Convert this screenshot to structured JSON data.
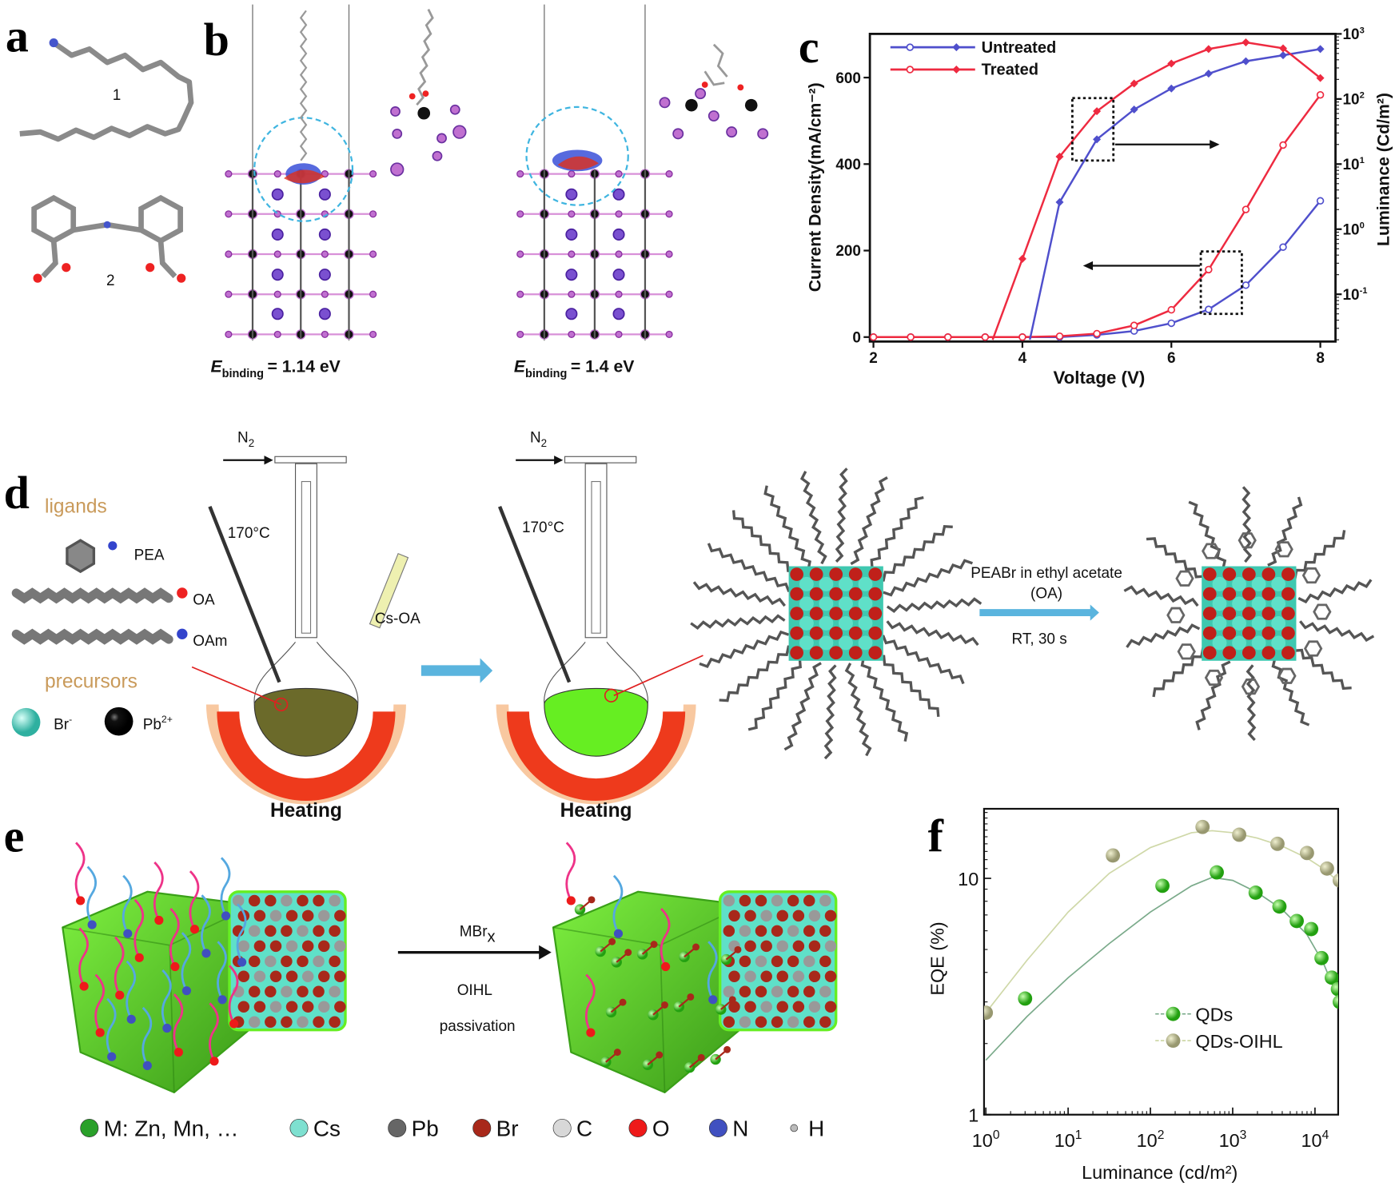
{
  "panel_labels": {
    "a": "a",
    "b": "b",
    "c": "c",
    "d": "d",
    "e": "e",
    "f": "f"
  },
  "panel_a": {
    "molecule_1_label": "1",
    "molecule_2_label": "2"
  },
  "panel_b": {
    "binding": [
      {
        "symbol": "E",
        "subscript": "binding",
        "value": "= 1.14 eV"
      },
      {
        "symbol": "E",
        "subscript": "binding",
        "value": "= 1.4 eV"
      }
    ]
  },
  "panel_d": {
    "ligands_heading": "ligands",
    "ligands": [
      "PEA",
      "OA",
      "OAm"
    ],
    "precursors_heading": "precursors",
    "precursors": [
      {
        "name": "Br",
        "sup": "-"
      },
      {
        "name": "Pb",
        "sup": "2+"
      }
    ],
    "gas": {
      "main": "N",
      "sub": "2"
    },
    "temperature": "170°C",
    "syringe_label": "Cs-OA",
    "heating_label": "Heating",
    "exchange_line1": "PEABr in ethyl acetate",
    "exchange_line2": "(OA)",
    "exchange_conditions": "RT, 30 s",
    "colors": {
      "flask1": "#6b6a2a",
      "flask2": "#66ee22",
      "mantle": "#ee3a1c",
      "mantle_halo": "#f8c8a0",
      "arrow": "#5ab4de"
    }
  },
  "panel_e": {
    "reagent_main": "MBr",
    "reagent_sub": "x",
    "process_line1": "OIHL",
    "process_line2": "passivation",
    "legend": [
      {
        "label": "M: Zn, Mn, …",
        "color": "#2aa02a"
      },
      {
        "label": "Cs",
        "color": "#7ee0d0"
      },
      {
        "label": "Pb",
        "color": "#666666"
      },
      {
        "label": "Br",
        "color": "#a8281a"
      },
      {
        "label": "C",
        "color": "#d8d8d8"
      },
      {
        "label": "O",
        "color": "#ee1a1a"
      },
      {
        "label": "N",
        "color": "#4050c0"
      },
      {
        "label": "H",
        "color": "#bbbbbb"
      }
    ]
  },
  "chart_data": [
    {
      "type": "line",
      "panel": "c",
      "xlabel": "Voltage (V)",
      "ylabel": "Current Density(mA/cm⁻²)",
      "ylabel_right": "Luminance (Cd/m²)",
      "xlim": [
        2,
        8
      ],
      "ylim": [
        -10,
        700
      ],
      "ylim_right_log10": [
        -1.7,
        3
      ],
      "xticks": [
        "2",
        "4",
        "6",
        "8"
      ],
      "yticks": [
        "0",
        "200",
        "400",
        "600"
      ],
      "yticks_right": [
        {
          "base": "10",
          "exp": "3"
        },
        {
          "base": "10",
          "exp": "2"
        },
        {
          "base": "10",
          "exp": "1"
        },
        {
          "base": "10",
          "exp": "0"
        },
        {
          "base": "10",
          "exp": "-1"
        }
      ],
      "legend": {
        "placement": "top-left",
        "entries": [
          "Untreated",
          "Treated"
        ]
      },
      "colors": {
        "Untreated": "#4f4fcc",
        "Treated": "#ee2a40"
      },
      "series": [
        {
          "name": "Untreated",
          "quantity": "current_density",
          "axis": "left",
          "marker": "open-circle",
          "x": [
            2,
            2.5,
            3,
            3.5,
            4,
            4.5,
            5,
            5.5,
            6,
            6.5,
            7,
            7.5,
            8
          ],
          "values": [
            0,
            0,
            0,
            0,
            0,
            0,
            5,
            14,
            32,
            64,
            120,
            208,
            315
          ]
        },
        {
          "name": "Treated",
          "quantity": "current_density",
          "axis": "left",
          "marker": "open-circle",
          "x": [
            2,
            2.5,
            3,
            3.5,
            4,
            4.5,
            5,
            5.5,
            6,
            6.5,
            7,
            7.5,
            8
          ],
          "values": [
            0,
            0,
            0,
            0,
            0,
            2,
            8,
            27,
            63,
            156,
            295,
            444,
            560
          ]
        },
        {
          "name": "Untreated",
          "quantity": "luminance",
          "axis": "right",
          "marker": "filled-diamond",
          "x": [
            4.1,
            4.5,
            5,
            5.5,
            6,
            6.5,
            7,
            7.5,
            8
          ],
          "values": [
            0.02,
            2.6,
            24,
            69,
            145,
            245,
            380,
            470,
            585
          ]
        },
        {
          "name": "Treated",
          "quantity": "luminance",
          "axis": "right",
          "marker": "filled-diamond",
          "x": [
            3.6,
            4,
            4.5,
            5,
            5.5,
            6,
            6.5,
            7,
            7.5,
            8
          ],
          "values": [
            0.02,
            0.35,
            13,
            65,
            173,
            350,
            585,
            740,
            600,
            210
          ]
        }
      ],
      "annotations": [
        "dotted box around luminance curves near 5 V with arrow pointing right",
        "dotted box around current curves near 6.5 V with arrow pointing left"
      ]
    },
    {
      "type": "scatter",
      "panel": "f",
      "xlabel": "Luminance (cd/m²)",
      "ylabel": "EQE (%)",
      "xscale": "log",
      "yscale": "log",
      "xlim": [
        1,
        19000
      ],
      "ylim": [
        1,
        19.7
      ],
      "xticks": [
        {
          "base": "10",
          "exp": "0"
        },
        {
          "base": "10",
          "exp": "1"
        },
        {
          "base": "10",
          "exp": "2"
        },
        {
          "base": "10",
          "exp": "3"
        },
        {
          "base": "10",
          "exp": "4"
        }
      ],
      "yticks": [
        "1",
        "10"
      ],
      "legend": {
        "placement": "bottom-right",
        "entries": [
          "QDs",
          "QDs-OIHL"
        ]
      },
      "colors": {
        "QDs": "#33cc22",
        "QDs-OIHL": "#b8b888"
      },
      "series": [
        {
          "name": "QDs",
          "x": [
            3,
            140,
            640,
            1900,
            3700,
            6000,
            9000,
            12000,
            16000,
            19000,
            20000
          ],
          "values": [
            3.1,
            9.3,
            10.6,
            8.7,
            7.6,
            6.6,
            6.1,
            4.6,
            3.8,
            3.4,
            3.0
          ],
          "fit_log10x": [
            0,
            0.5,
            1,
            1.5,
            2,
            2.5,
            2.75,
            3,
            3.3,
            3.6,
            3.9,
            4.1,
            4.3
          ],
          "fit_values": [
            1.7,
            2.6,
            3.8,
            5.3,
            7.2,
            9.3,
            10.1,
            9.8,
            8.7,
            7.4,
            5.8,
            4.4,
            3.0
          ]
        },
        {
          "name": "QDs-OIHL",
          "x": [
            1,
            35,
            430,
            1200,
            3500,
            8000,
            14000,
            20000
          ],
          "values": [
            2.7,
            12.5,
            16.5,
            15.3,
            14.0,
            12.8,
            11.0,
            9.8
          ],
          "fit_log10x": [
            0,
            0.5,
            1,
            1.5,
            2,
            2.5,
            2.75,
            3,
            3.3,
            3.6,
            3.9,
            4.1,
            4.3
          ],
          "fit_values": [
            2.7,
            4.5,
            7.2,
            10.5,
            13.5,
            15.6,
            15.9,
            15.6,
            14.8,
            13.7,
            12.2,
            11.0,
            9.6
          ]
        }
      ]
    }
  ]
}
